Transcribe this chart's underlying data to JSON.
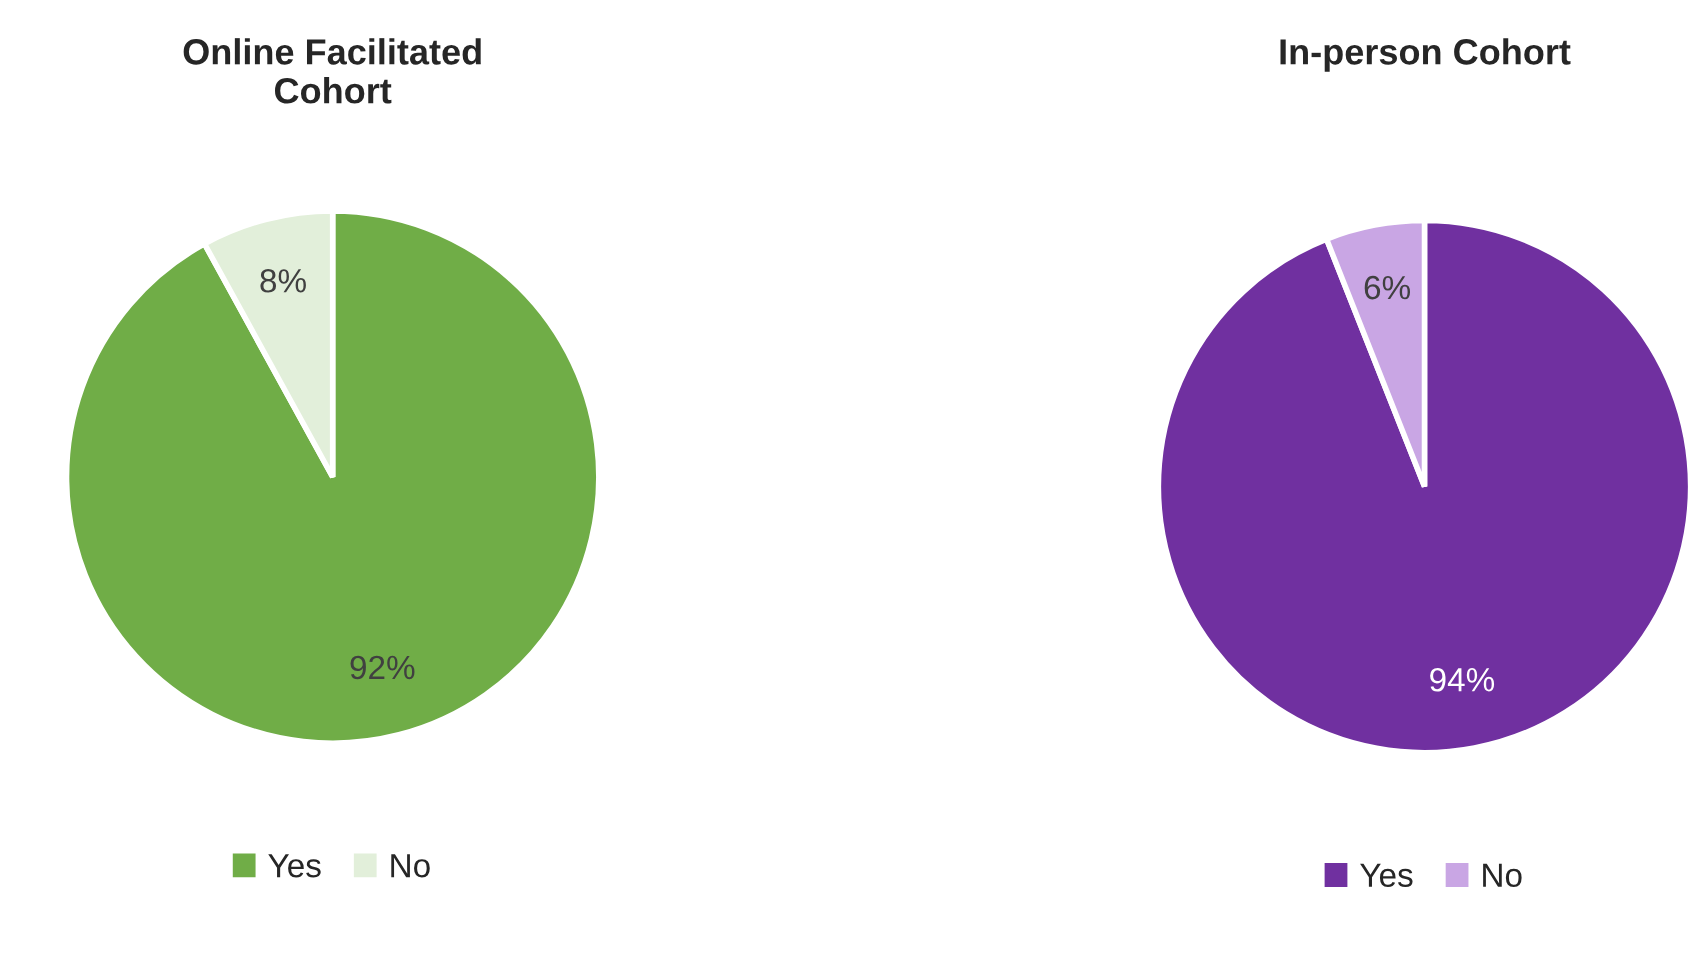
{
  "chart_data": [
    {
      "type": "pie",
      "title": "Online Facilitated\nCohort",
      "categories": [
        "Yes",
        "No"
      ],
      "values": [
        92,
        8
      ],
      "colors": [
        "#70ad47",
        "#e2efda"
      ],
      "value_labels": [
        "92%",
        "8%"
      ],
      "legend": "bottom"
    },
    {
      "type": "pie",
      "title": "In-person Cohort",
      "categories": [
        "Yes",
        "No"
      ],
      "values": [
        94,
        6
      ],
      "colors": [
        "#7030a0",
        "#c9a6e4"
      ],
      "value_labels": [
        "94%",
        "6%"
      ],
      "legend": "bottom"
    }
  ]
}
